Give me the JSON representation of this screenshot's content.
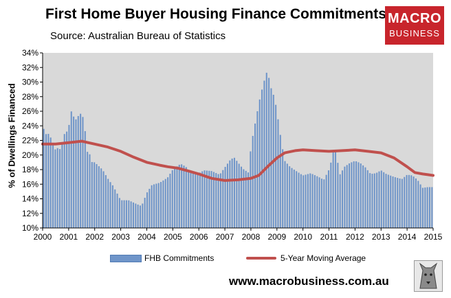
{
  "header": {
    "title": "First Home Buyer Housing Finance Commitments",
    "subtitle": "Source: Australian Bureau of Statistics"
  },
  "logo": {
    "line1": "MACRO",
    "line2": "BUSINESS"
  },
  "footer": {
    "url": "www.macrobusiness.com.au"
  },
  "colors": {
    "bars": "#6f95c9",
    "line": "#c0504d",
    "plot_bg": "#d9d9d9",
    "logo": "#c8252c"
  },
  "chart_data": {
    "type": "bar",
    "title": "First Home Buyer Housing Finance Commitments",
    "ylabel": "% of Dwellings Financed",
    "xlabel": "",
    "ylim": [
      10,
      34
    ],
    "xlim": [
      2000,
      2015
    ],
    "yticks": [
      "10%",
      "12%",
      "14%",
      "16%",
      "18%",
      "20%",
      "22%",
      "24%",
      "26%",
      "28%",
      "30%",
      "32%",
      "34%"
    ],
    "xticks": [
      "2000",
      "2001",
      "2002",
      "2003",
      "2004",
      "2005",
      "2006",
      "2007",
      "2008",
      "2009",
      "2010",
      "2011",
      "2012",
      "2013",
      "2014",
      "2015"
    ],
    "grid": false,
    "legend_position": "bottom",
    "series": [
      {
        "name": "FHB Commitments",
        "type": "bar",
        "anchors": [
          [
            2000.0,
            24.2
          ],
          [
            2000.1,
            22.8
          ],
          [
            2000.2,
            23.0
          ],
          [
            2000.3,
            22.5
          ],
          [
            2000.45,
            20.7
          ],
          [
            2000.6,
            21.0
          ],
          [
            2000.7,
            20.7
          ],
          [
            2000.8,
            22.8
          ],
          [
            2000.9,
            23.0
          ],
          [
            2001.0,
            23.8
          ],
          [
            2001.1,
            26.0
          ],
          [
            2001.2,
            25.2
          ],
          [
            2001.3,
            24.8
          ],
          [
            2001.4,
            25.6
          ],
          [
            2001.5,
            25.7
          ],
          [
            2001.6,
            24.6
          ],
          [
            2001.7,
            20.5
          ],
          [
            2001.8,
            20.2
          ],
          [
            2001.9,
            19.0
          ],
          [
            2002.0,
            19.0
          ],
          [
            2002.3,
            18.0
          ],
          [
            2002.5,
            16.8
          ],
          [
            2002.7,
            15.8
          ],
          [
            2002.9,
            14.5
          ],
          [
            2003.0,
            13.8
          ],
          [
            2003.3,
            13.8
          ],
          [
            2003.6,
            13.3
          ],
          [
            2003.8,
            13.0
          ],
          [
            2004.0,
            14.8
          ],
          [
            2004.2,
            15.9
          ],
          [
            2004.5,
            16.2
          ],
          [
            2004.8,
            16.9
          ],
          [
            2005.0,
            18.0
          ],
          [
            2005.3,
            18.8
          ],
          [
            2005.5,
            18.4
          ],
          [
            2005.7,
            17.5
          ],
          [
            2006.0,
            17.5
          ],
          [
            2006.2,
            17.9
          ],
          [
            2006.5,
            17.8
          ],
          [
            2006.8,
            17.3
          ],
          [
            2007.0,
            18.3
          ],
          [
            2007.2,
            19.3
          ],
          [
            2007.35,
            19.7
          ],
          [
            2007.5,
            19.0
          ],
          [
            2007.7,
            18.1
          ],
          [
            2007.9,
            17.6
          ],
          [
            2008.0,
            21.0
          ],
          [
            2008.1,
            23.2
          ],
          [
            2008.2,
            25.0
          ],
          [
            2008.3,
            27.0
          ],
          [
            2008.4,
            28.6
          ],
          [
            2008.5,
            30.0
          ],
          [
            2008.6,
            31.3
          ],
          [
            2008.7,
            30.5
          ],
          [
            2008.8,
            28.8
          ],
          [
            2008.9,
            28.0
          ],
          [
            2009.0,
            26.0
          ],
          [
            2009.1,
            23.5
          ],
          [
            2009.2,
            21.2
          ],
          [
            2009.3,
            19.2
          ],
          [
            2009.5,
            18.4
          ],
          [
            2009.7,
            17.9
          ],
          [
            2010.0,
            17.2
          ],
          [
            2010.3,
            17.5
          ],
          [
            2010.6,
            17.0
          ],
          [
            2010.8,
            16.6
          ],
          [
            2011.0,
            18.0
          ],
          [
            2011.1,
            19.3
          ],
          [
            2011.2,
            21.0
          ],
          [
            2011.3,
            20.0
          ],
          [
            2011.4,
            17.2
          ],
          [
            2011.6,
            18.4
          ],
          [
            2011.8,
            18.9
          ],
          [
            2012.0,
            19.2
          ],
          [
            2012.2,
            18.9
          ],
          [
            2012.4,
            18.3
          ],
          [
            2012.6,
            17.4
          ],
          [
            2012.8,
            17.5
          ],
          [
            2013.0,
            17.9
          ],
          [
            2013.2,
            17.4
          ],
          [
            2013.5,
            17.0
          ],
          [
            2013.8,
            16.7
          ],
          [
            2014.0,
            17.3
          ],
          [
            2014.2,
            17.2
          ],
          [
            2014.4,
            16.6
          ],
          [
            2014.6,
            15.5
          ],
          [
            2014.8,
            15.6
          ],
          [
            2015.0,
            15.6
          ]
        ]
      },
      {
        "name": "5-Year Moving Average",
        "type": "line",
        "points": [
          [
            2000.0,
            21.5
          ],
          [
            2000.5,
            21.5
          ],
          [
            2001.0,
            21.7
          ],
          [
            2001.5,
            21.9
          ],
          [
            2002.0,
            21.5
          ],
          [
            2002.5,
            21.1
          ],
          [
            2003.0,
            20.5
          ],
          [
            2003.5,
            19.7
          ],
          [
            2004.0,
            19.0
          ],
          [
            2004.5,
            18.6
          ],
          [
            2004.8,
            18.4
          ],
          [
            2005.2,
            18.2
          ],
          [
            2005.6,
            17.8
          ],
          [
            2006.0,
            17.4
          ],
          [
            2006.5,
            16.8
          ],
          [
            2007.0,
            16.5
          ],
          [
            2007.5,
            16.6
          ],
          [
            2008.0,
            16.8
          ],
          [
            2008.3,
            17.2
          ],
          [
            2008.7,
            18.6
          ],
          [
            2009.0,
            19.6
          ],
          [
            2009.3,
            20.3
          ],
          [
            2009.7,
            20.6
          ],
          [
            2010.0,
            20.7
          ],
          [
            2010.5,
            20.6
          ],
          [
            2011.0,
            20.5
          ],
          [
            2011.5,
            20.6
          ],
          [
            2012.0,
            20.7
          ],
          [
            2012.5,
            20.5
          ],
          [
            2013.0,
            20.3
          ],
          [
            2013.5,
            19.6
          ],
          [
            2014.0,
            18.4
          ],
          [
            2014.3,
            17.6
          ],
          [
            2014.6,
            17.4
          ],
          [
            2014.8,
            17.3
          ],
          [
            2015.0,
            17.2
          ]
        ]
      }
    ],
    "bar_count": 170
  }
}
